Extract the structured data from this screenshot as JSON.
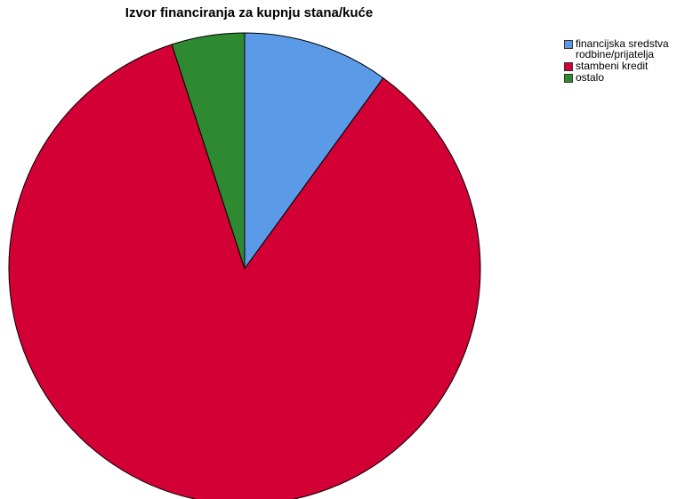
{
  "chart_data": {
    "type": "pie",
    "title": "Izvor financiranja za kupnju stana/kuće",
    "categories": [
      "financijska sredstva rodbine/prijatelja",
      "stambeni kredit",
      "ostalo"
    ],
    "values": [
      10,
      85,
      5
    ],
    "colors": [
      "#5a9ae6",
      "#d20034",
      "#2d8a30"
    ],
    "legend": "top-right"
  }
}
